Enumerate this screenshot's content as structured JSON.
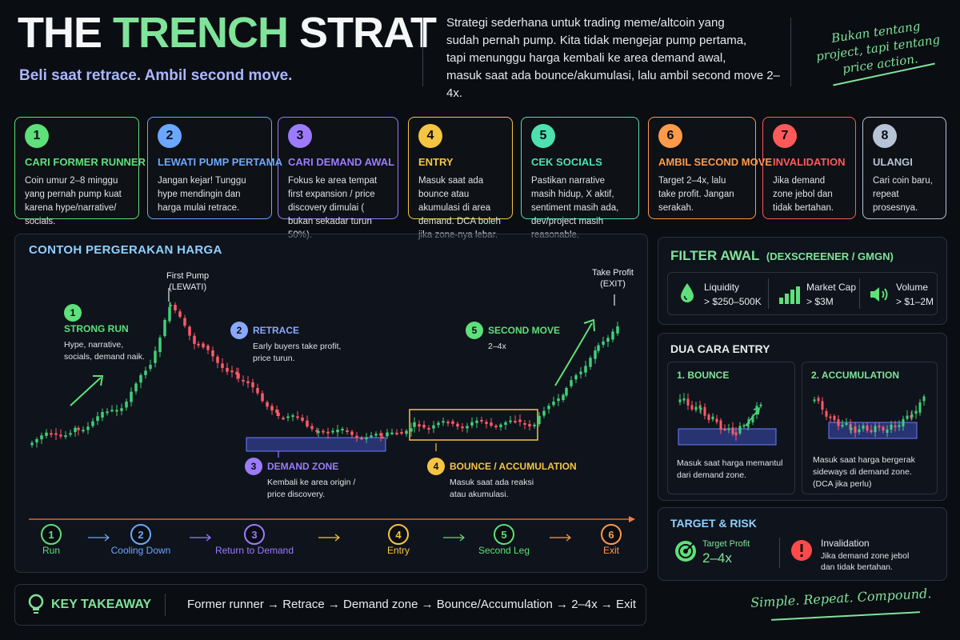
{
  "header": {
    "title_a": "THE ",
    "title_b": "TRENCH",
    "title_c": " STRAT",
    "subtitle": "Beli saat retrace. Ambil second move.",
    "intro_lines": [
      "Strategi sederhana untuk trading meme/altcoin yang",
      "sudah pernah pump. Kita tidak mengejar pump pertama,",
      "tapi menunggu harga kembali ke area demand awal,",
      "masuk saat ada bounce/akumulasi, lalu ambil second move 2–4x."
    ],
    "quote_lines": [
      "Bukan tentang",
      "project, tapi tentang",
      "price action."
    ]
  },
  "steps": [
    {
      "num": "1",
      "title": "CARI FORMER RUNNER",
      "desc": "Coin umur 2–8 minggu yang pernah pump kuat karena hype/narrative/ socials.",
      "color": "#5ee07a"
    },
    {
      "num": "2",
      "title": "LEWATI PUMP PERTAMA",
      "desc": "Jangan kejar! Tunggu hype mendingin dan harga mulai retrace.",
      "color": "#6aa8ff"
    },
    {
      "num": "3",
      "title": "CARI DEMAND AWAL",
      "desc": "Fokus ke area tempat first expansion / price discovery dimulai ( bukan sekadar turun 50%).",
      "color": "#9c7bff"
    },
    {
      "num": "4",
      "title": "ENTRY",
      "desc": "Masuk saat ada bounce atau akumulasi di area demand. DCA boleh jika zone-nya lebar.",
      "color": "#f5c542"
    },
    {
      "num": "5",
      "title": "CEK SOCIALS",
      "desc": "Pastikan narrative masih hidup, X aktif, sentiment masih ada, dev/project masih reasonable.",
      "color": "#4fe0b0"
    },
    {
      "num": "6",
      "title": "AMBIL SECOND MOVE",
      "desc": "Target 2–4x, lalu take profit. Jangan serakah.",
      "color": "#ff9a4a"
    },
    {
      "num": "7",
      "title": "INVALIDATION",
      "desc": "Jika demand zone jebol dan tidak bertahan.",
      "color": "#ff5a5a"
    },
    {
      "num": "8",
      "title": "ULANGI",
      "desc": "Cari coin baru, repeat prosesnya.",
      "color": "#b7c3d6"
    }
  ],
  "chart": {
    "title": "CONTOH PERGERAKAN HARGA",
    "first_pump": [
      "First Pump",
      "(LEWATI)"
    ],
    "take_profit": [
      "Take Profit",
      "(EXIT)"
    ],
    "annotations": [
      {
        "num": "1",
        "title": "STRONG RUN",
        "desc": [
          "Hype, narrative,",
          "socials, demand naik."
        ],
        "color": "#5ee07a"
      },
      {
        "num": "2",
        "title": "RETRACE",
        "desc": [
          "Early buyers take profit,",
          "price turun."
        ],
        "color": "#8aa8ff"
      },
      {
        "num": "3",
        "title": "DEMAND ZONE",
        "desc": [
          "Kembali ke area origin /",
          "price discovery."
        ],
        "color": "#9c7bff"
      },
      {
        "num": "4",
        "title": "BOUNCE / ACCUMULATION",
        "desc": [
          "Masuk saat ada reaksi",
          "atau akumulasi."
        ],
        "color": "#f5c542"
      },
      {
        "num": "5",
        "title": "SECOND MOVE",
        "desc": [
          "2–4x"
        ],
        "color": "#5ee07a"
      }
    ],
    "timeline": [
      {
        "num": "1",
        "label": "Run",
        "color": "#5ee07a"
      },
      {
        "num": "2",
        "label": "Cooling Down",
        "color": "#6aa8ff"
      },
      {
        "num": "3",
        "label": "Return to Demand",
        "color": "#9c7bff"
      },
      {
        "num": "4",
        "label": "Entry",
        "color": "#f5c542"
      },
      {
        "num": "5",
        "label": "Second Leg",
        "color": "#5ee07a"
      },
      {
        "num": "6",
        "label": "Exit",
        "color": "#ff9a4a"
      }
    ]
  },
  "filter": {
    "title": "FILTER AWAL",
    "title_sub": "(DEXSCREENER / GMGN)",
    "items": [
      {
        "name": "Liquidity",
        "value": "> $250–500K",
        "icon": "droplet-icon"
      },
      {
        "name": "Market Cap",
        "value": "> $3M",
        "icon": "bar-chart-icon"
      },
      {
        "name": "Volume",
        "value": "> $1–2M",
        "icon": "speaker-icon"
      }
    ]
  },
  "entry_methods": {
    "title": "DUA CARA ENTRY",
    "bounce": {
      "title": "1. BOUNCE",
      "desc": [
        "Masuk saat harga memantul",
        "dari demand zone."
      ]
    },
    "accumulation": {
      "title": "2. ACCUMULATION",
      "desc": [
        "Masuk saat harga bergerak",
        "sideways di demand zone.",
        "(DCA jika perlu)"
      ]
    }
  },
  "target_risk": {
    "title": "TARGET & RISK",
    "target_label": "Target Profit",
    "target_value": "2–4x",
    "invalid_label": "Invalidation",
    "invalid_desc": [
      "Jika demand zone jebol",
      "dan tidak bertahan."
    ]
  },
  "key": {
    "title": "KEY TAKEAWAY",
    "text": "Former runner  →  Retrace  →  Demand zone  →  Bounce/Accumulation  →  2–4x  →  Exit"
  },
  "signoff": "Simple. Repeat. Compound.",
  "colors": {
    "green": "#5ee07a",
    "red": "#ff5a5a",
    "accent_blue": "#8fd0ff"
  }
}
